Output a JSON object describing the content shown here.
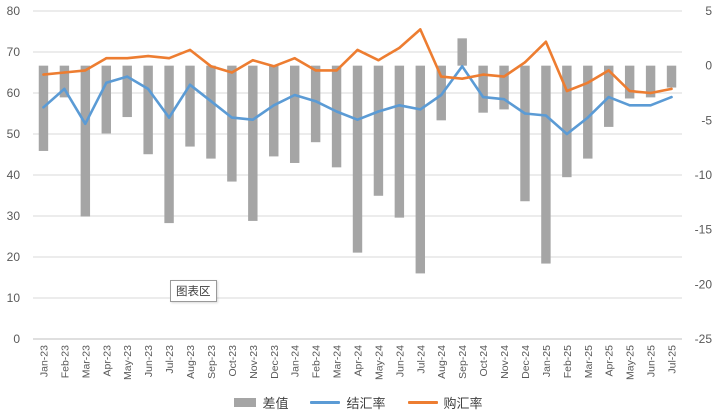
{
  "chart_data": {
    "type": "bar+line",
    "categories": [
      "Jan-23",
      "Feb-23",
      "Mar-23",
      "Apr-23",
      "May-23",
      "Jun-23",
      "Jul-23",
      "Aug-23",
      "Sep-23",
      "Oct-23",
      "Nov-23",
      "Dec-23",
      "Jan-24",
      "Feb-24",
      "Mar-24",
      "Apr-24",
      "May-24",
      "Jun-24",
      "Jul-24",
      "Aug-24",
      "Sep-24",
      "Oct-24",
      "Nov-24",
      "Dec-24",
      "Jan-25",
      "Feb-25",
      "Mar-25",
      "Apr-25",
      "May-25",
      "Jun-25",
      "Jul-25"
    ],
    "y_left": {
      "min": 0,
      "max": 80,
      "step": 10
    },
    "y_right": {
      "min": -25,
      "max": 5,
      "step": 5
    },
    "series": [
      {
        "name": "差值",
        "type": "bar",
        "axis": "right",
        "values": [
          -7.8,
          -2.9,
          -13.8,
          -6.2,
          -4.7,
          -8.1,
          -14.4,
          -7.4,
          -8.5,
          -10.6,
          -14.2,
          -8.3,
          -8.9,
          -7.0,
          -9.3,
          -17.1,
          -11.9,
          -13.9,
          -19.0,
          -5.0,
          2.5,
          -4.3,
          -4.0,
          -12.4,
          -18.1,
          -10.2,
          -8.5,
          -5.6,
          -3.0,
          -2.9,
          -2.0
        ]
      },
      {
        "name": "结汇率",
        "type": "line",
        "axis": "left",
        "color": "#5b9bd5",
        "values": [
          56.5,
          61.0,
          52.5,
          62.5,
          64.0,
          61.0,
          54.0,
          62.0,
          58.0,
          54.0,
          53.5,
          57.0,
          59.5,
          58.0,
          55.5,
          53.5,
          55.5,
          57.0,
          56.0,
          59.5,
          66.5,
          59.0,
          58.5,
          55.0,
          54.5,
          50.0,
          54.0,
          59.0,
          57.0,
          57.0,
          59.0
        ]
      },
      {
        "name": "购汇率",
        "type": "line",
        "axis": "left",
        "color": "#ed7d31",
        "values": [
          64.5,
          65.0,
          65.5,
          68.5,
          68.5,
          69.0,
          68.5,
          70.5,
          66.5,
          65.0,
          68.0,
          66.5,
          68.5,
          65.5,
          65.5,
          70.5,
          68.0,
          71.0,
          75.5,
          64.0,
          63.5,
          64.5,
          64.0,
          67.5,
          72.5,
          60.5,
          62.5,
          65.5,
          60.5,
          60.0,
          61.0
        ]
      }
    ],
    "legend_position": "bottom",
    "grid": true
  },
  "annotation": {
    "label": "图表区"
  },
  "legend": {
    "bar_label": "差值",
    "line1_label": "结汇率",
    "line2_label": "购汇率"
  }
}
